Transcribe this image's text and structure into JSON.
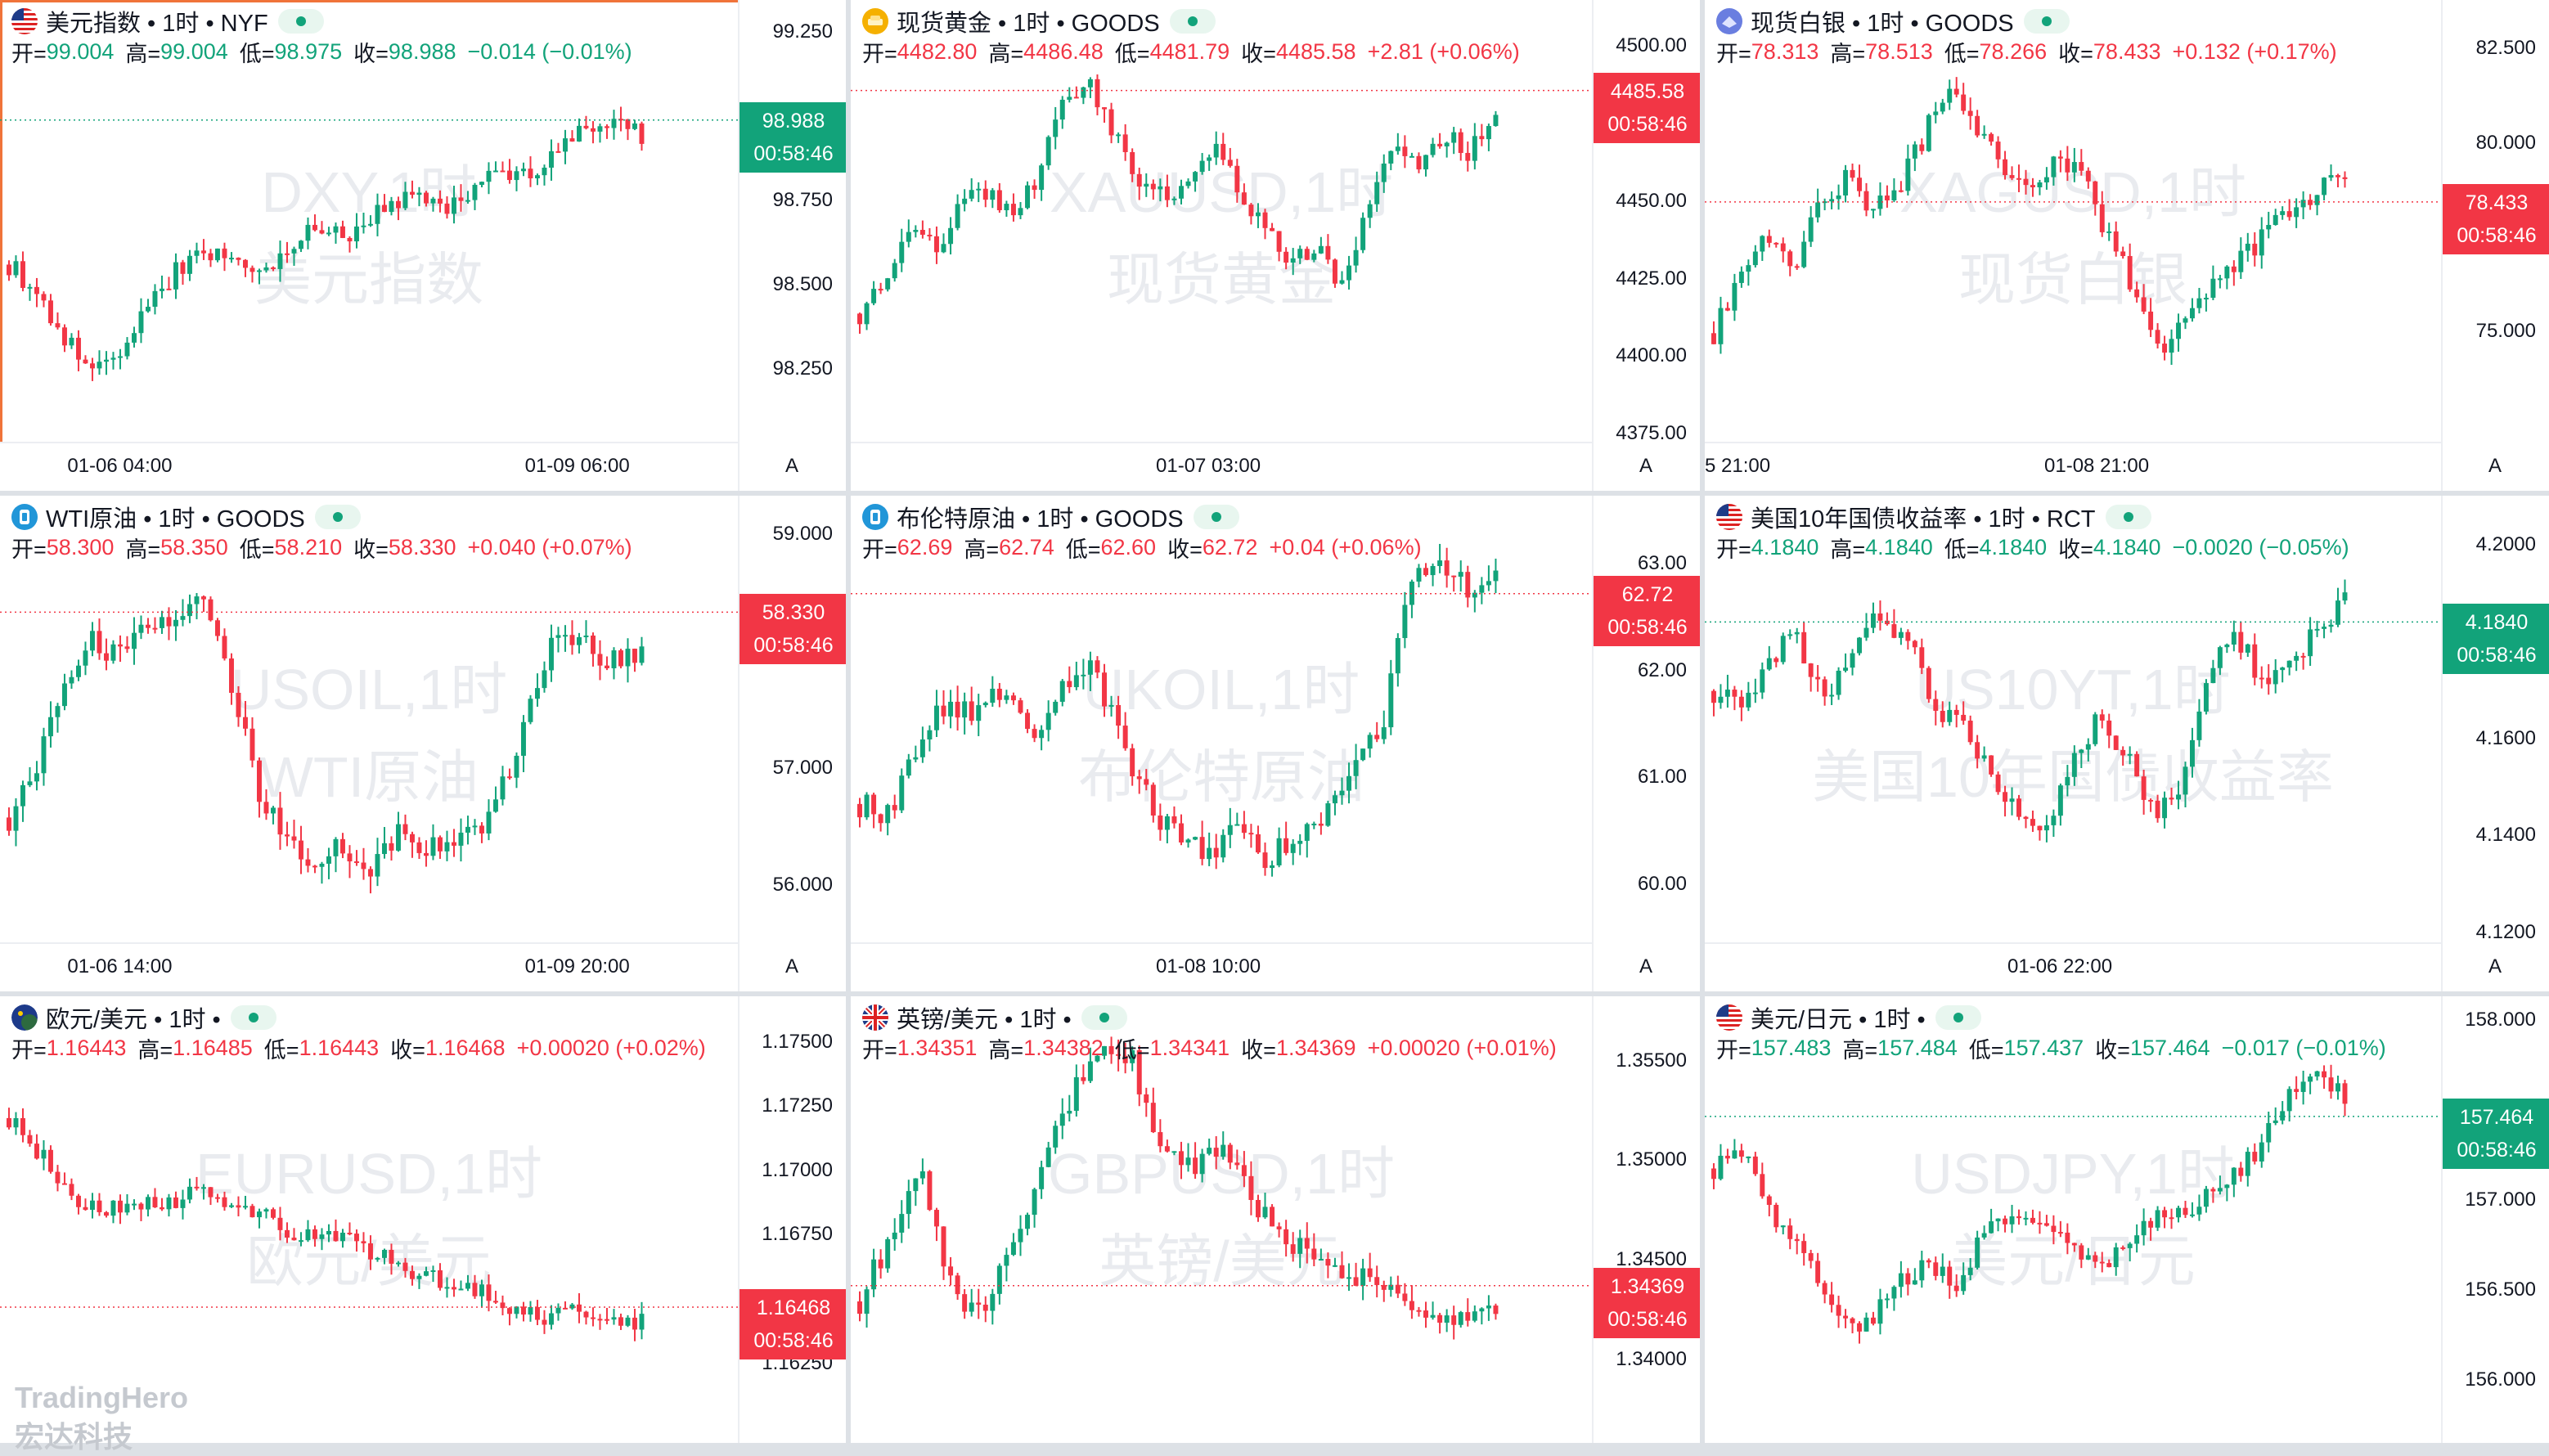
{
  "colors": {
    "up": "#12a37a",
    "down": "#f23645",
    "grid": "#f0f3f7"
  },
  "watermark_brand": {
    "line1": "TradingHero",
    "line2": "宏达科技"
  },
  "panels": [
    {
      "id": "dxy",
      "title": "美元指数 • 1时 • NYF",
      "icon": "us-flag-icon",
      "ohlc": {
        "open": "99.004",
        "high": "99.004",
        "low": "98.975",
        "close": "98.988",
        "change": "−0.014 (−0.01%)"
      },
      "direction": "down-green",
      "watermark": [
        "DXY,1时",
        "美元指数"
      ],
      "price_ticks": [
        "99.250",
        "98.750",
        "98.500",
        "98.250"
      ],
      "price_axis": {
        "min": 98.05,
        "max": 99.3
      },
      "time_ticks": [
        "01-06 04:00",
        "01-09 06:00"
      ],
      "last_price": "98.988",
      "countdown": "00:58:46",
      "series_range": [
        98.2,
        99.0
      ],
      "auto_scale_label": "A",
      "selected": true
    },
    {
      "id": "gold",
      "title": "现货黄金 • 1时 • GOODS",
      "icon": "gold-coins-icon",
      "ohlc": {
        "open": "4482.80",
        "high": "4486.48",
        "low": "4481.79",
        "close": "4485.58",
        "change": "+2.81 (+0.06%)"
      },
      "direction": "up-red",
      "watermark": [
        "XAUUSD,1时",
        "现货黄金"
      ],
      "price_ticks": [
        "4500.00",
        "4450.00",
        "4425.00",
        "4400.00",
        "4375.00"
      ],
      "price_axis": {
        "min": 4374,
        "max": 4510
      },
      "time_ticks": [
        "01-07 03:00"
      ],
      "last_price": "4485.58",
      "countdown": "00:58:46",
      "series_range": [
        4405,
        4492
      ],
      "auto_scale_label": "A"
    },
    {
      "id": "silver",
      "title": "现货白银 • 1时 • GOODS",
      "icon": "silver-bars-icon",
      "ohlc": {
        "open": "78.313",
        "high": "78.513",
        "low": "78.266",
        "close": "78.433",
        "change": "+0.132 (+0.17%)"
      },
      "direction": "up-red",
      "watermark": [
        "XAGUSD,1时",
        "现货白银"
      ],
      "price_ticks": [
        "82.500",
        "80.000",
        "75.000"
      ],
      "price_axis": {
        "min": 72.2,
        "max": 83.4
      },
      "time_ticks": [
        "5 21:00",
        "01-08 21:00"
      ],
      "last_price": "78.433",
      "countdown": "00:58:46",
      "series_range": [
        74.2,
        81.7
      ],
      "auto_scale_label": "A"
    },
    {
      "id": "wti",
      "title": "WTI原油 • 1时 • GOODS",
      "icon": "oil-barrel-icon",
      "ohlc": {
        "open": "58.300",
        "high": "58.350",
        "low": "58.210",
        "close": "58.330",
        "change": "+0.040 (+0.07%)"
      },
      "direction": "up-red",
      "watermark": [
        "USOIL,1时",
        "WTI原油"
      ],
      "price_ticks": [
        "59.000",
        "57.000",
        "56.000"
      ],
      "price_axis": {
        "min": 55.55,
        "max": 59.2
      },
      "time_ticks": [
        "01-06 14:00",
        "01-09 20:00"
      ],
      "last_price": "58.330",
      "countdown": "00:58:46",
      "series_range": [
        55.85,
        58.75
      ],
      "auto_scale_label": "A"
    },
    {
      "id": "brent",
      "title": "布伦特原油 • 1时 • GOODS",
      "icon": "oil-barrel-icon",
      "ohlc": {
        "open": "62.69",
        "high": "62.74",
        "low": "62.60",
        "close": "62.72",
        "change": "+0.04 (+0.06%)"
      },
      "direction": "up-red",
      "watermark": [
        "UKOIL,1时",
        "布伦特原油"
      ],
      "price_ticks": [
        "63.00",
        "62.00",
        "61.00",
        "60.00"
      ],
      "price_axis": {
        "min": 59.5,
        "max": 63.5
      },
      "time_ticks": [
        "01-08 10:00"
      ],
      "last_price": "62.72",
      "countdown": "00:58:46",
      "series_range": [
        59.95,
        63.15
      ],
      "auto_scale_label": "A"
    },
    {
      "id": "us10y",
      "title": "美国10年国债收益率 • 1时 • RCT",
      "icon": "us-flag-icon",
      "ohlc": {
        "open": "4.1840",
        "high": "4.1840",
        "low": "4.1840",
        "close": "4.1840",
        "change": "−0.0020 (−0.05%)"
      },
      "direction": "down-green",
      "watermark": [
        "US10YT,1时",
        "美国10年国债收益率"
      ],
      "price_ticks": [
        "4.2000",
        "4.1600",
        "4.1400",
        "4.1200"
      ],
      "price_axis": {
        "min": 4.119,
        "max": 4.207
      },
      "time_ticks": [
        "01-06 22:00"
      ],
      "last_price": "4.1840",
      "countdown": "00:58:46",
      "series_range": [
        4.132,
        4.195
      ],
      "auto_scale_label": "A"
    },
    {
      "id": "eurusd",
      "title": "欧元/美元 • 1时 •",
      "icon": "eu-flag-icon",
      "ohlc": {
        "open": "1.16443",
        "high": "1.16485",
        "low": "1.16443",
        "close": "1.16468",
        "change": "+0.00020 (+0.02%)"
      },
      "direction": "up-red",
      "watermark": [
        "EURUSD,1时",
        "欧元/美元"
      ],
      "price_ticks": [
        "1.17500",
        "1.17250",
        "1.17000",
        "1.16750",
        "1.16250"
      ],
      "price_axis": {
        "min": 1.1615,
        "max": 1.1762
      },
      "time_ticks": [],
      "last_price": "1.16468",
      "countdown": "00:58:46",
      "series_range": [
        1.1632,
        1.1725
      ],
      "auto_scale_label": ""
    },
    {
      "id": "gbpusd",
      "title": "英镑/美元 • 1时 •",
      "icon": "uk-flag-icon",
      "ohlc": {
        "open": "1.34351",
        "high": "1.34382",
        "low": "1.34341",
        "close": "1.34369",
        "change": "+0.00020 (+0.01%)"
      },
      "direction": "up-red",
      "watermark": [
        "GBPUSD,1时",
        "英镑/美元"
      ],
      "price_ticks": [
        "1.35500",
        "1.35000",
        "1.34500",
        "1.34000"
      ],
      "price_axis": {
        "min": 1.3385,
        "max": 1.3575
      },
      "time_ticks": [],
      "last_price": "1.34369",
      "countdown": "00:58:46",
      "series_range": [
        1.3405,
        1.3565
      ],
      "auto_scale_label": ""
    },
    {
      "id": "usdjpy",
      "title": "美元/日元 • 1时 •",
      "icon": "us-flag-icon",
      "ohlc": {
        "open": "157.483",
        "high": "157.484",
        "low": "157.437",
        "close": "157.464",
        "change": "−0.017 (−0.01%)"
      },
      "direction": "down-green",
      "watermark": [
        "USDJPY,1时",
        "美元/日元"
      ],
      "price_ticks": [
        "158.000",
        "157.000",
        "156.500",
        "156.000"
      ],
      "price_axis": {
        "min": 155.95,
        "max": 158.05
      },
      "time_ticks": [],
      "last_price": "157.464",
      "countdown": "00:58:46",
      "series_range": [
        156.2,
        157.7
      ],
      "auto_scale_label": ""
    }
  ],
  "ohlc_labels": {
    "open": "开=",
    "high": "高=",
    "low": "低=",
    "close": "收="
  }
}
